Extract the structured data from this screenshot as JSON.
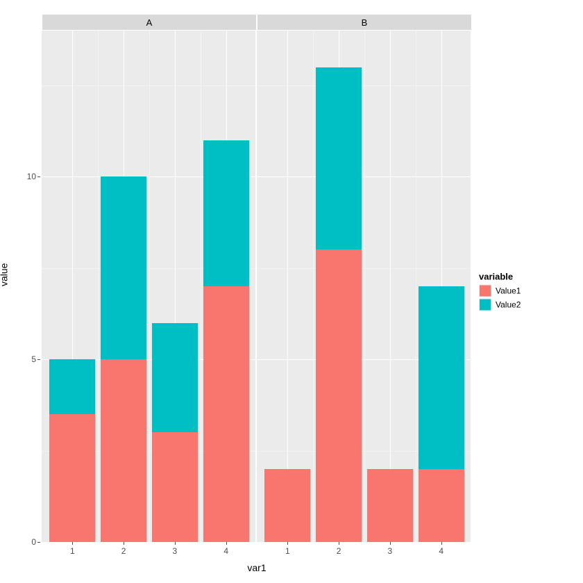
{
  "chart": {
    "type": "stacked-bar-faceted",
    "x_title": "var1",
    "y_title": "value",
    "legend_title": "variable",
    "background_color": "#ffffff",
    "panel_bg": "#ebebeb",
    "strip_bg": "#d9d9d9",
    "grid_major_color": "#ffffff",
    "grid_minor_color": "#f3f3f3",
    "axis_text_color": "#4d4d4d",
    "title_text_color": "#000000",
    "ylim": [
      0,
      14
    ],
    "y_ticks": [
      0,
      5,
      10
    ],
    "y_minor_ticks": [
      2.5,
      7.5,
      12.5
    ],
    "x_ticks": [
      "1",
      "2",
      "3",
      "4"
    ],
    "bar_width": 0.9,
    "series": [
      {
        "key": "Value1",
        "color": "#f8766d"
      },
      {
        "key": "Value2",
        "color": "#00bfc4"
      }
    ],
    "facets": [
      {
        "label": "A",
        "bars": [
          {
            "x": "1",
            "Value1": 3.5,
            "Value2": 1.5
          },
          {
            "x": "2",
            "Value1": 5.0,
            "Value2": 5.0
          },
          {
            "x": "3",
            "Value1": 3.0,
            "Value2": 3.0
          },
          {
            "x": "4",
            "Value1": 7.0,
            "Value2": 4.0
          }
        ]
      },
      {
        "label": "B",
        "bars": [
          {
            "x": "1",
            "Value1": 2.0,
            "Value2": 0.0
          },
          {
            "x": "2",
            "Value1": 8.0,
            "Value2": 5.0
          },
          {
            "x": "3",
            "Value1": 2.0,
            "Value2": 0.0
          },
          {
            "x": "4",
            "Value1": 2.0,
            "Value2": 5.0
          }
        ]
      }
    ]
  }
}
